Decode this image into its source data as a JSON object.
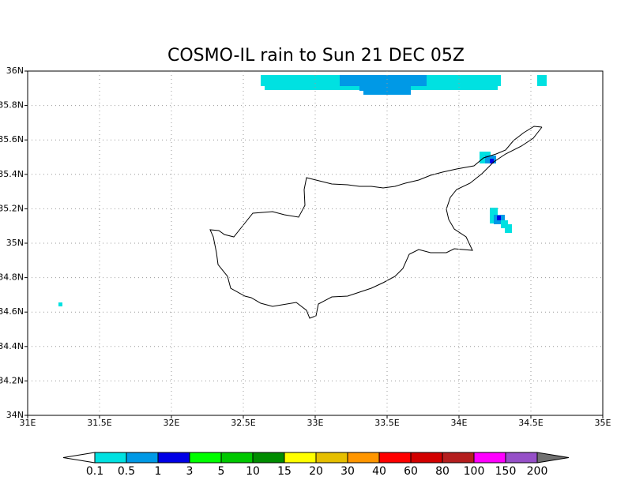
{
  "map": {
    "title": "COSMO-IL rain to Sun 21 DEC 05Z",
    "xlim": [
      31,
      35
    ],
    "ylim": [
      34,
      36
    ],
    "xticks": [
      {
        "value": 31,
        "label": "31E"
      },
      {
        "value": 31.5,
        "label": "31.5E"
      },
      {
        "value": 32,
        "label": "32E"
      },
      {
        "value": 32.5,
        "label": "32.5E"
      },
      {
        "value": 33,
        "label": "33E"
      },
      {
        "value": 33.5,
        "label": "33.5E"
      },
      {
        "value": 34,
        "label": "34E"
      },
      {
        "value": 34.5,
        "label": "34.5E"
      },
      {
        "value": 35,
        "label": "35E"
      }
    ],
    "yticks": [
      {
        "value": 34,
        "label": "34N"
      },
      {
        "value": 34.2,
        "label": "34.2N"
      },
      {
        "value": 34.4,
        "label": "34.4N"
      },
      {
        "value": 34.6,
        "label": "34.6N"
      },
      {
        "value": 34.8,
        "label": "34.8N"
      },
      {
        "value": 35,
        "label": "35N"
      },
      {
        "value": 35.2,
        "label": "35.2N"
      },
      {
        "value": 35.4,
        "label": "35.4N"
      },
      {
        "value": 35.6,
        "label": "35.6N"
      },
      {
        "value": 35.8,
        "label": "35.8N"
      },
      {
        "value": 36,
        "label": "36N"
      }
    ],
    "grid": true,
    "colorbar": {
      "labels": [
        "0.1",
        "0.5",
        "1",
        "3",
        "5",
        "10",
        "15",
        "20",
        "30",
        "40",
        "60",
        "80",
        "100",
        "150",
        "200"
      ],
      "colors": [
        "#00e1e1",
        "#0099e6",
        "#0000e6",
        "#00ff00",
        "#00c800",
        "#008c00",
        "#ffff00",
        "#e6bf00",
        "#ff9600",
        "#ff0000",
        "#d20000",
        "#b41e1e",
        "#ff00ff",
        "#9650c8"
      ],
      "under_color": "#ffffff",
      "over_color": "#707070"
    }
  }
}
